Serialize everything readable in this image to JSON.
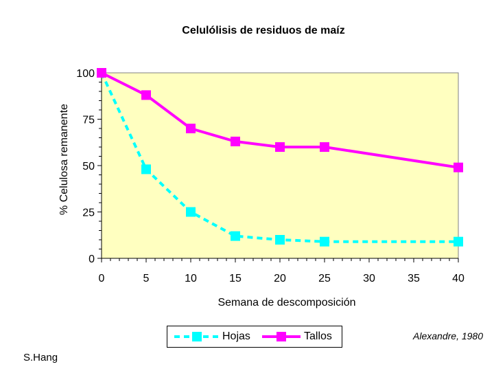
{
  "chart_data": {
    "type": "line",
    "title": "Celulólisis de residuos de maíz",
    "xlabel": "Semana de descomposición",
    "ylabel": "% Celulosa remanente",
    "xlim": [
      0,
      40
    ],
    "ylim": [
      0,
      100
    ],
    "xticks": [
      0,
      5,
      10,
      15,
      20,
      25,
      30,
      35,
      40
    ],
    "yticks": [
      0,
      25,
      50,
      75,
      100
    ],
    "grid": false,
    "plot_background": "#ffffc0",
    "legend_position": "bottom",
    "series": [
      {
        "name": "Hojas",
        "color": "#00ffff",
        "line_style": "dashed",
        "marker": "square",
        "x": [
          0,
          5,
          10,
          15,
          20,
          25,
          40
        ],
        "y": [
          100,
          48,
          25,
          12,
          10,
          9,
          9
        ]
      },
      {
        "name": "Tallos",
        "color": "#ff00ff",
        "line_style": "solid",
        "marker": "square",
        "x": [
          0,
          5,
          10,
          15,
          20,
          25,
          40
        ],
        "y": [
          100,
          88,
          70,
          63,
          60,
          60,
          49
        ]
      }
    ]
  },
  "credit": "Alexandre, 1980",
  "author": "S.Hang"
}
